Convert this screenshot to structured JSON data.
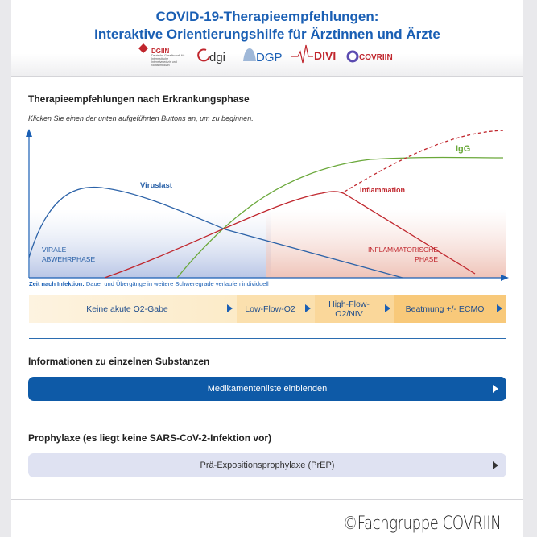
{
  "header": {
    "title_line1": "COVID-19-Therapieempfehlungen:",
    "title_line2": "Interaktive Orientierungshilfe für Ärztinnen und Ärzte",
    "logos": {
      "dgiin": "DGIIN",
      "dgiin_subtitle": "Deutsche Gesellschaft für Internistische Intensivmedizin und Notfallmedizin",
      "dgi": "dgi",
      "dgp": "DGP",
      "divi": "DIVI",
      "covriin": "COVRIIN"
    }
  },
  "phases": {
    "heading": "Therapieempfehlungen nach Erkrankungsphase",
    "instruction": "Klicken Sie einen der unten aufgeführten Buttons an, um zu beginnen.",
    "diagram": {
      "viruslast": "Viruslast",
      "igg": "IgG",
      "inflammation": "Inflammation",
      "viral_phase": [
        "VIRALE",
        "ABWEHRPHASE"
      ],
      "inflammatory_phase": [
        "INFLAMMATORISCHE",
        "PHASE"
      ]
    },
    "axis_note_bold": "Zeit nach Infektion:",
    "axis_note": "Dauer und Übergänge in weitere Schweregrade verlaufen individuell",
    "buttons": [
      "Keine akute O2-Gabe",
      "Low-Flow-O2",
      "High-Flow-O2/NIV",
      "Beatmung +/- ECMO"
    ]
  },
  "substances": {
    "heading": "Informationen zu einzelnen Substanzen",
    "button": "Medikamentenliste einblenden"
  },
  "prophylaxis": {
    "heading": "Prophylaxe (es liegt keine SARS-CoV-2-Infektion vor)",
    "button": "Prä-Expositionsprophylaxe (PrEP)"
  },
  "footer": {
    "copyright": "©Fachgruppe COVRIIN"
  }
}
